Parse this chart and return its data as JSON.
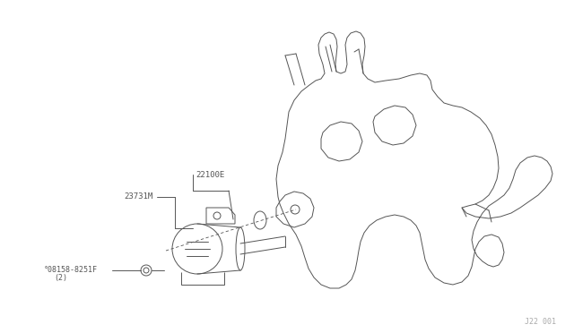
{
  "bg_color": "#ffffff",
  "line_color": "#555555",
  "label_22100E": "22100E",
  "label_23731M": "23731M",
  "label_bolt": "°08158-8251F",
  "label_bolt_qty": "(2)",
  "label_ref": "J22 001",
  "fig_width": 6.4,
  "fig_height": 3.72,
  "dpi": 100
}
